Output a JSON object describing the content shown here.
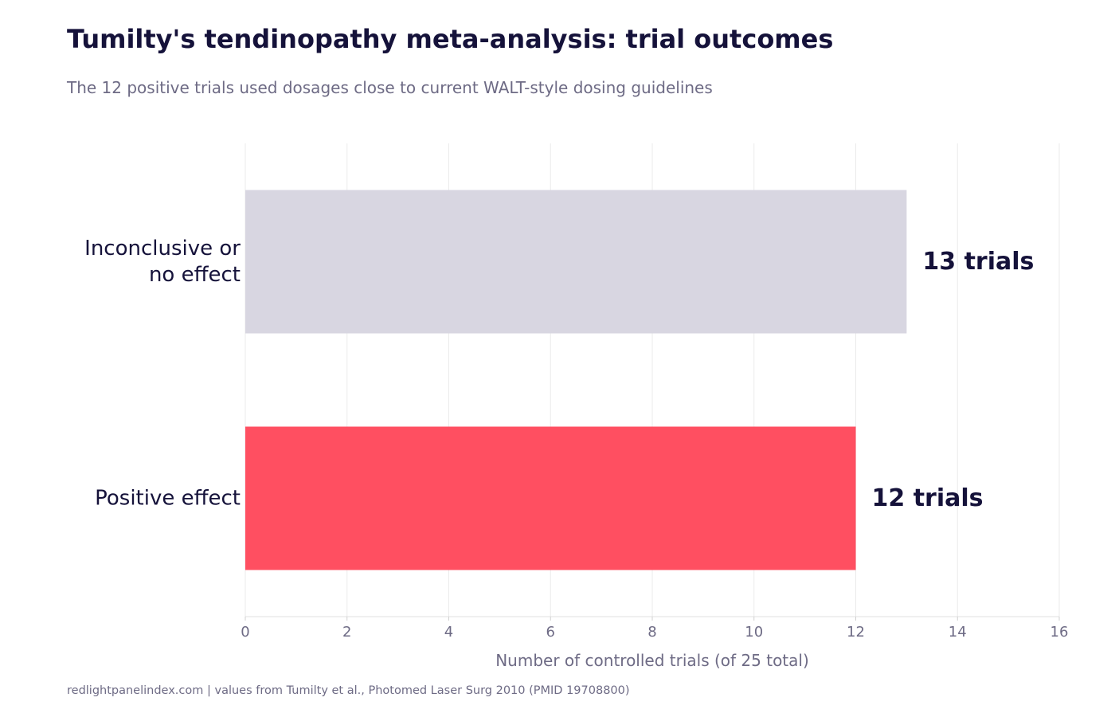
{
  "header": {
    "title": "Tumilty's tendinopathy meta-analysis: trial outcomes",
    "subtitle": "The 12 positive trials used dosages close to current WALT-style dosing guidelines"
  },
  "footer": {
    "source": "redlightpanelindex.com | values from Tumilty et al., Photomed Laser Surg 2010 (PMID 19708800)"
  },
  "chart_data": {
    "type": "bar",
    "orientation": "horizontal",
    "title": "Tumilty's tendinopathy meta-analysis: trial outcomes",
    "subtitle": "The 12 positive trials used dosages close to current WALT-style dosing guidelines",
    "xlabel": "Number of controlled trials (of 25 total)",
    "ylabel": "",
    "xlim": [
      0,
      16
    ],
    "xticks": [
      0,
      2,
      4,
      6,
      8,
      10,
      12,
      14,
      16
    ],
    "grid": true,
    "categories": [
      {
        "lines": [
          "Inconclusive or",
          "no effect"
        ],
        "value": 13,
        "label": "13 trials",
        "color": "#d8d6e1"
      },
      {
        "lines": [
          "Positive effect"
        ],
        "value": 12,
        "label": "12 trials",
        "color": "#ff4f61"
      }
    ]
  }
}
